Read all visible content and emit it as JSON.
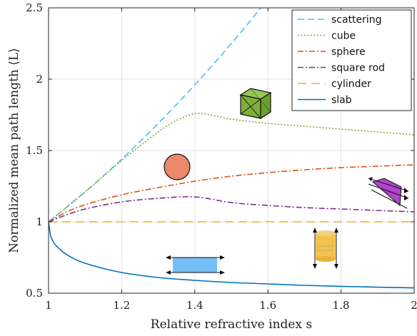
{
  "chart_data": {
    "type": "line",
    "title": "",
    "xlabel": "Relative refractive index s",
    "ylabel": "Normalized mean path length ⟨L⟩",
    "xlim": [
      1,
      2
    ],
    "ylim": [
      0.5,
      2.5
    ],
    "xticks": [
      "1",
      "1.2",
      "1.4",
      "1.6",
      "1.8",
      "2"
    ],
    "yticks": [
      "0.5",
      "1",
      "1.5",
      "2",
      "2.5"
    ],
    "grid": true,
    "legend_position": "top-right",
    "series": [
      {
        "name": "scattering",
        "color": "#4DBEEE",
        "dash": "dashed",
        "x": [
          1.0,
          1.1,
          1.2,
          1.3,
          1.4,
          1.5,
          1.6
        ],
        "y": [
          1.0,
          1.21,
          1.44,
          1.69,
          1.96,
          2.25,
          2.56
        ]
      },
      {
        "name": "cube",
        "color": "#77AC30",
        "dash": "dotted",
        "x": [
          1.0,
          1.1,
          1.2,
          1.3,
          1.35,
          1.41,
          1.5,
          1.6,
          1.7,
          1.8,
          1.9,
          2.0
        ],
        "y": [
          1.0,
          1.21,
          1.43,
          1.63,
          1.71,
          1.76,
          1.72,
          1.69,
          1.67,
          1.65,
          1.63,
          1.61
        ]
      },
      {
        "name": "sphere",
        "color": "#D95319",
        "dash": "dashdot",
        "x": [
          1.0,
          1.05,
          1.1,
          1.2,
          1.3,
          1.4,
          1.5,
          1.6,
          1.7,
          1.8,
          1.9,
          2.0
        ],
        "y": [
          1.0,
          1.07,
          1.12,
          1.19,
          1.24,
          1.285,
          1.32,
          1.345,
          1.365,
          1.38,
          1.39,
          1.4
        ]
      },
      {
        "name": "square rod",
        "color": "#7E2F8E",
        "dash": "dashdot",
        "x": [
          1.0,
          1.05,
          1.1,
          1.2,
          1.3,
          1.4,
          1.5,
          1.6,
          1.7,
          1.8,
          1.9,
          2.0
        ],
        "y": [
          1.0,
          1.05,
          1.09,
          1.14,
          1.165,
          1.175,
          1.135,
          1.115,
          1.1,
          1.09,
          1.08,
          1.07
        ]
      },
      {
        "name": "cylinder",
        "color": "#EDB120",
        "dash": "longdash",
        "x": [
          1.0,
          2.0
        ],
        "y": [
          1.0,
          1.0
        ]
      },
      {
        "name": "slab",
        "color": "#0072BD",
        "dash": "solid",
        "x": [
          1.0,
          1.005,
          1.01,
          1.02,
          1.05,
          1.1,
          1.2,
          1.3,
          1.4,
          1.5,
          1.6,
          1.7,
          1.8,
          1.9,
          2.0
        ],
        "y": [
          1.0,
          0.91,
          0.875,
          0.835,
          0.77,
          0.71,
          0.645,
          0.61,
          0.59,
          0.575,
          0.565,
          0.555,
          0.548,
          0.542,
          0.537
        ]
      }
    ]
  }
}
